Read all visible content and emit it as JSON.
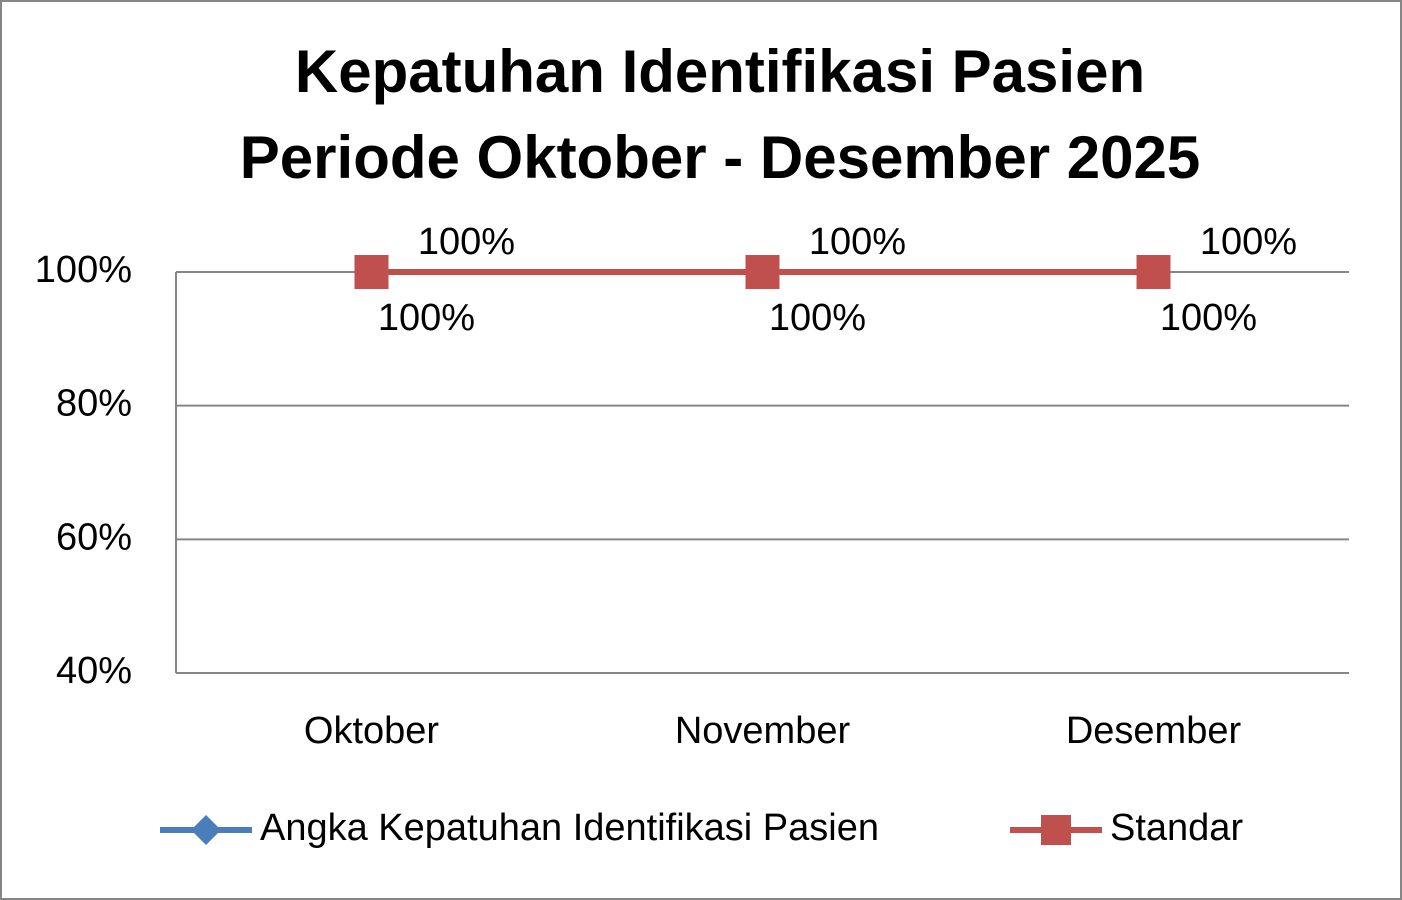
{
  "chart_data": {
    "type": "line",
    "title": [
      "Kepatuhan Identifikasi Pasien",
      "Periode Oktober - Desember 2025"
    ],
    "categories": [
      "Oktober",
      "November",
      "Desember"
    ],
    "series": [
      {
        "name": "Angka Kepatuhan Identifikasi Pasien",
        "color": "#4a7ebb",
        "marker": "diamond",
        "values": [
          100,
          100,
          100
        ],
        "value_labels": [
          "100%",
          "100%",
          "100%"
        ]
      },
      {
        "name": "Standar",
        "color": "#c0504d",
        "marker": "square",
        "values": [
          100,
          100,
          100
        ],
        "value_labels": [
          "100%",
          "100%",
          "100%"
        ]
      }
    ],
    "ylim": [
      40,
      100
    ],
    "yticks": [
      {
        "value": 40,
        "label": "40%"
      },
      {
        "value": 60,
        "label": "60%"
      },
      {
        "value": 80,
        "label": "80%"
      },
      {
        "value": 100,
        "label": "100%"
      }
    ],
    "grid": true,
    "legend": "bottom"
  }
}
